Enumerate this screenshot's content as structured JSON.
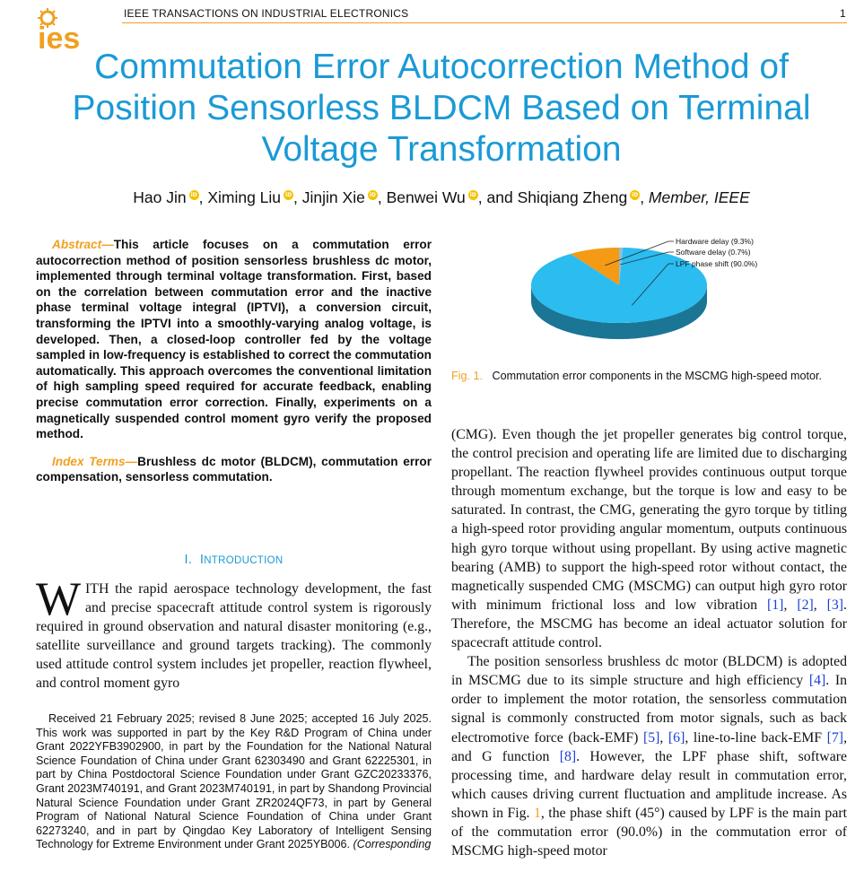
{
  "header": {
    "logo_text": "ies",
    "journal": "IEEE TRANSACTIONS ON INDUSTRIAL ELECTRONICS",
    "page_number": "1"
  },
  "colors": {
    "accent_blue": "#1a9ad6",
    "accent_orange": "#f0a020",
    "link_blue": "#1b3fd8",
    "orcid": "#f5c300"
  },
  "title": "Commutation Error Autocorrection Method of Position Sensorless BLDCM Based on Terminal Voltage Transformation",
  "authors": {
    "names": [
      "Hao Jin",
      "Ximing Liu",
      "Jinjin Xie",
      "Benwei Wu",
      "Shiqiang Zheng"
    ],
    "conjunction": "and",
    "membership": "Member, IEEE",
    "orcid_icon_text": "iD"
  },
  "abstract": {
    "label": "Abstract—",
    "text": "This article focuses on a commutation error autocorrection method of position sensorless brushless dc motor, implemented through terminal voltage transformation. First, based on the correlation between commutation error and the inactive phase terminal voltage integral (IPTVI), a conversion circuit, transforming the IPTVI into a smoothly-varying analog voltage, is developed. Then, a closed-loop controller fed by the voltage sampled in low-frequency is established to correct the commutation automatically. This approach overcomes the conventional limitation of high sampling speed required for accurate feedback, enabling precise commutation error correction. Finally, experiments on a magnetically suspended control moment gyro verify the proposed method."
  },
  "index_terms": {
    "label": "Index Terms—",
    "text": "Brushless dc motor (BLDCM), commutation error compensation, sensorless commutation."
  },
  "section": {
    "number": "I.",
    "title_initial": "I",
    "title_rest": "NTRODUCTION"
  },
  "intro": {
    "dropcap": "W",
    "text": "ITH the rapid aerospace technology development, the fast and precise spacecraft attitude control system is rigorously required in ground observation and natural disaster monitoring (e.g., satellite surveillance and ground targets tracking). The commonly used attitude control system includes jet propeller, reaction flywheel, and control moment gyro"
  },
  "footnote": {
    "text": "Received 21 February 2025; revised 8 June 2025; accepted 16 July 2025. This work was supported in part by the Key R&D Program of China under Grant 2022YFB3902900, in part by the Foundation for the National Natural Science Foundation of China under Grant 62303490 and Grant 62225301, in part by China Postdoctoral Science Foundation under Grant GZC20233376, Grant 2023M740191, and Grant 2023M740191, in part by Shandong Provincial Natural Science Foundation under Grant ZR2024QF73, in part by General Program of National Natural Science Foundation of China under Grant 62273240, and in part by Qingdao Key Laboratory of Intelligent Sensing Technology for Extreme Environment under Grant 2025YB006.",
    "italic_tail": "(Corresponding"
  },
  "figure": {
    "label": "Fig. 1.",
    "caption": "Commutation error components in the MSCMG high-speed motor."
  },
  "chart_data": {
    "type": "pie",
    "title": "",
    "slices": [
      {
        "label": "Hardware delay (9.3%)",
        "value": 9.3,
        "color": "#f49a14"
      },
      {
        "label": "Software delay  (0.7%)",
        "value": 0.7,
        "color": "#8fbfd6"
      },
      {
        "label": "LPF phase shift (90.0%)",
        "value": 90.0,
        "color": "#2bbcf0"
      }
    ],
    "style": "3d",
    "legend": "callout-labels-top-right"
  },
  "right_column": {
    "p1": [
      {
        "t": "(CMG). Even though the jet propeller generates big control torque, the control precision and operating life are limited due to discharging propellant. The reaction flywheel provides continuous output torque through momentum exchange, but the torque is low and easy to be saturated. In contrast, the CMG, generating the gyro torque by titling a high-speed rotor providing angular momentum, outputs continuous high gyro torque without using propellant. By using active magnetic bearing (AMB) to support the high-speed rotor without contact, the magnetically suspended CMG (MSCMG) can output high gyro rotor with minimum frictional loss and low vibration "
      },
      {
        "ref": "[1]"
      },
      {
        "t": ", "
      },
      {
        "ref": "[2]"
      },
      {
        "t": ", "
      },
      {
        "ref": "[3]"
      },
      {
        "t": ". Therefore, the MSCMG has become an ideal actuator solution for spacecraft attitude control."
      }
    ],
    "p2": [
      {
        "t": "The position sensorless brushless dc motor (BLDCM) is adopted in MSCMG due to its simple structure and high efficiency "
      },
      {
        "ref": "[4]"
      },
      {
        "t": ". In order to implement the motor rotation, the sensorless commutation signal is commonly constructed from motor signals, such as back electromotive force (back-EMF) "
      },
      {
        "ref": "[5]"
      },
      {
        "t": ", "
      },
      {
        "ref": "[6]"
      },
      {
        "t": ", line-to-line back-EMF "
      },
      {
        "ref": "[7]"
      },
      {
        "t": ", and G function "
      },
      {
        "ref": "[8]"
      },
      {
        "t": ". However, the LPF phase shift, software processing time, and hardware delay result in commutation error, which causes driving current fluctuation and amplitude increase. As shown in Fig. "
      },
      {
        "fig": "1"
      },
      {
        "t": ", the phase shift (45°) caused by LPF is the main part of the commutation error (90.0%) in the commutation error of MSCMG high-speed motor"
      }
    ]
  }
}
